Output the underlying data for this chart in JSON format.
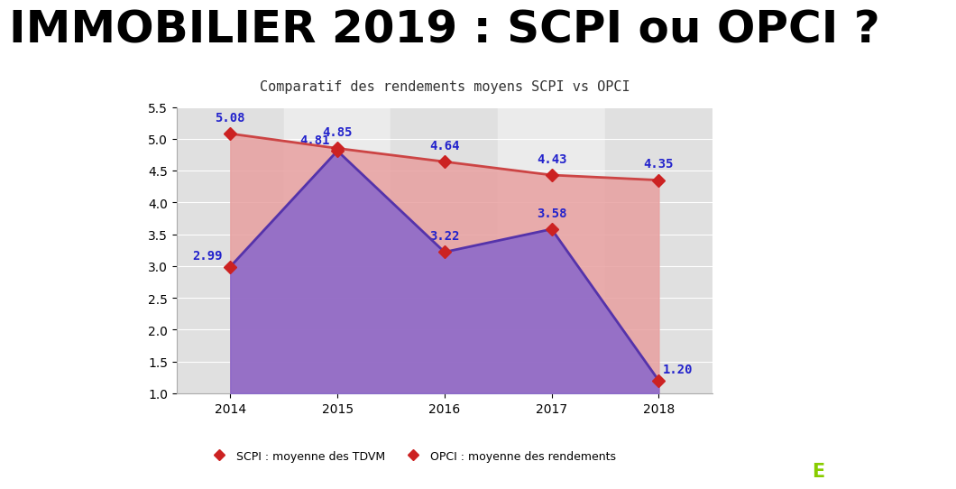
{
  "title": "IMMOBILIER 2019 : SCPI ou OPCI ?",
  "subtitle": "Comparatif des rendements moyens SCPI vs OPCI",
  "years": [
    2014,
    2015,
    2016,
    2017,
    2018
  ],
  "scpi": [
    5.08,
    4.85,
    4.64,
    4.43,
    4.35
  ],
  "opci": [
    2.99,
    4.81,
    3.22,
    3.58,
    1.2
  ],
  "scpi_color": "#cc4444",
  "opci_color": "#5533aa",
  "scpi_fill": "#e8a0a0",
  "opci_fill": "#8866cc",
  "ylim": [
    1.0,
    5.5
  ],
  "yticks": [
    1.0,
    1.5,
    2.0,
    2.5,
    3.0,
    3.5,
    4.0,
    4.5,
    5.0,
    5.5
  ],
  "bg_color": "#f0f0f0",
  "legend_scpi": "SCPI : moyenne des TDVM",
  "legend_opci": "OPCI : moyenne des rendements",
  "marker_color": "#cc2222",
  "label_color": "#2222cc",
  "title_fontsize": 36,
  "subtitle_fontsize": 11,
  "label_fontsize": 10,
  "tick_fontsize": 10
}
